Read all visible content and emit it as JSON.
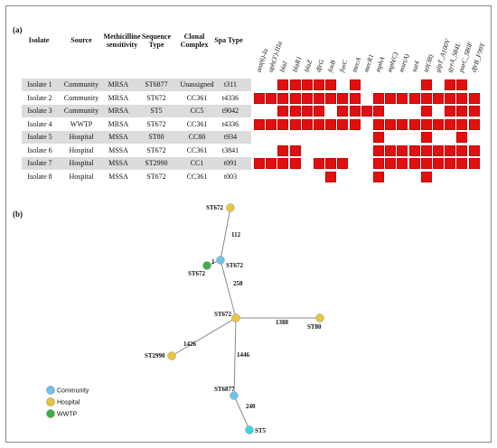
{
  "panel_a_label": "(a)",
  "panel_b_label": "(b)",
  "table": {
    "headers": [
      "Isolate",
      "Source",
      "Methicilline sensitivity",
      "Sequence Type",
      "Clonal Complex",
      "Spa Type"
    ],
    "rows": [
      [
        "Isolate 1",
        "Community",
        "MRSA",
        "ST6877",
        "Unassigned",
        "t311"
      ],
      [
        "Isolate 2",
        "Community",
        "MRSA",
        "ST672",
        "CC361",
        "t4336"
      ],
      [
        "Isolate 3",
        "Community",
        "MRSA",
        "ST5",
        "CC5",
        "t9042"
      ],
      [
        "Isolate 4",
        "WWTP",
        "MRSA",
        "ST672",
        "CC361",
        "t4336"
      ],
      [
        "Isolate 5",
        "Hospital",
        "MSSA",
        "ST80",
        "CC80",
        "t934"
      ],
      [
        "Isolate 6",
        "Hospital",
        "MSSA",
        "ST672",
        "CC361",
        "t3841"
      ],
      [
        "Isolate 7",
        "Hospital",
        "MSSA",
        "ST2990",
        "CC1",
        "t091"
      ],
      [
        "Isolate 8",
        "Hospital",
        "MSSA",
        "ST672",
        "CC361",
        "t003"
      ]
    ]
  },
  "genes": [
    "ant(6)-Ia",
    "aph(3')-IIIa",
    "blaI",
    "blaR1",
    "blaZ",
    "dfrG",
    "fosB",
    "fusC",
    "mecA",
    "mecR1",
    "mphA",
    "mph(C)",
    "msr(A)",
    "sat4",
    "tet(38)",
    "glpT_A100V",
    "gyrA_S84L",
    "parC_S80F",
    "dfrB_F99Y"
  ],
  "heatmap_presence": [
    [
      0,
      0,
      1,
      1,
      1,
      1,
      1,
      0,
      1,
      0,
      0,
      0,
      0,
      0,
      1,
      0,
      1,
      1,
      0
    ],
    [
      1,
      1,
      1,
      1,
      1,
      1,
      1,
      1,
      1,
      0,
      1,
      1,
      1,
      1,
      1,
      1,
      1,
      1,
      1
    ],
    [
      0,
      0,
      1,
      1,
      1,
      1,
      0,
      1,
      1,
      1,
      1,
      0,
      0,
      0,
      1,
      0,
      1,
      1,
      1
    ],
    [
      1,
      1,
      1,
      1,
      1,
      1,
      1,
      1,
      1,
      0,
      1,
      1,
      1,
      1,
      1,
      1,
      1,
      1,
      1
    ],
    [
      0,
      0,
      0,
      0,
      0,
      0,
      0,
      0,
      0,
      0,
      1,
      0,
      0,
      0,
      1,
      0,
      0,
      1,
      0
    ],
    [
      0,
      0,
      1,
      1,
      0,
      0,
      0,
      0,
      0,
      0,
      1,
      1,
      1,
      1,
      1,
      1,
      1,
      1,
      1
    ],
    [
      1,
      1,
      1,
      1,
      0,
      1,
      1,
      1,
      0,
      0,
      1,
      1,
      1,
      1,
      1,
      1,
      1,
      1,
      1
    ],
    [
      0,
      0,
      0,
      0,
      0,
      0,
      1,
      0,
      0,
      0,
      1,
      0,
      0,
      0,
      1,
      0,
      0,
      0,
      0
    ]
  ],
  "colors": {
    "heatmap_present": "#e01010",
    "community": "#6fc3e8",
    "hospital": "#e8c53a",
    "wwtp": "#3fae49",
    "st5": "#3ad4e0",
    "edge": "#8a8a8a"
  },
  "network": {
    "nodes": [
      {
        "label": "ST672",
        "group": "hospital"
      },
      {
        "label": "ST672",
        "group": "community"
      },
      {
        "label": "ST672",
        "group": "wwtp"
      },
      {
        "label": "ST672",
        "group": "hospital"
      },
      {
        "label": "ST80",
        "group": "hospital"
      },
      {
        "label": "ST2990",
        "group": "hospital"
      },
      {
        "label": "ST6877",
        "group": "community"
      },
      {
        "label": "ST5",
        "group": "st5"
      }
    ],
    "edges": [
      {
        "from": 0,
        "to": 1,
        "label": "112"
      },
      {
        "from": 1,
        "to": 2,
        "label": "1"
      },
      {
        "from": 1,
        "to": 3,
        "label": "258"
      },
      {
        "from": 3,
        "to": 4,
        "label": "1388"
      },
      {
        "from": 3,
        "to": 5,
        "label": "1426"
      },
      {
        "from": 3,
        "to": 6,
        "label": "1446"
      },
      {
        "from": 6,
        "to": 7,
        "label": "240"
      }
    ]
  },
  "legend": [
    {
      "label": "Community",
      "color": "#6fc3e8"
    },
    {
      "label": "Hospital",
      "color": "#e8c53a"
    },
    {
      "label": "WWTP",
      "color": "#3fae49"
    }
  ]
}
